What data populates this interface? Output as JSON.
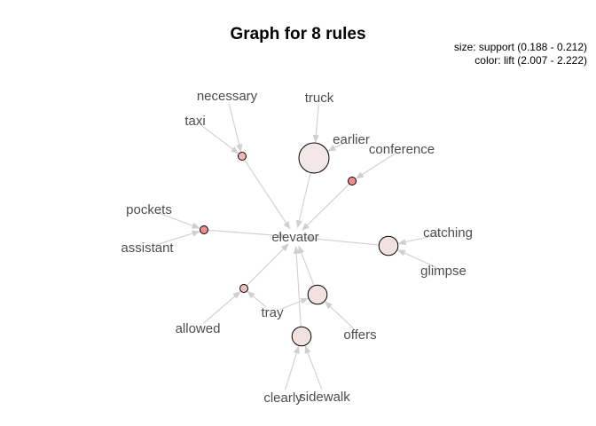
{
  "title": "Graph for 8 rules",
  "legend": {
    "size_text": "size: support (0.188 - 0.212)",
    "color_text": "color: lift (2.007 - 2.222)"
  },
  "colors": {
    "edge": "#cfcfcf",
    "node_stroke": "#000000",
    "label": "#4d4d4d",
    "lift_low": "#f2e6e6",
    "lift_high": "#ef8c8c"
  },
  "items": [
    {
      "id": "elevator",
      "label": "elevator"
    },
    {
      "id": "necessary",
      "label": "necessary"
    },
    {
      "id": "taxi",
      "label": "taxi"
    },
    {
      "id": "truck",
      "label": "truck"
    },
    {
      "id": "earlier",
      "label": "earlier"
    },
    {
      "id": "conference",
      "label": "conference"
    },
    {
      "id": "pockets",
      "label": "pockets"
    },
    {
      "id": "assistant",
      "label": "assistant"
    },
    {
      "id": "catching",
      "label": "catching"
    },
    {
      "id": "glimpse",
      "label": "glimpse"
    },
    {
      "id": "allowed",
      "label": "allowed"
    },
    {
      "id": "tray",
      "label": "tray"
    },
    {
      "id": "offers",
      "label": "offers"
    },
    {
      "id": "clearly",
      "label": "clearly"
    },
    {
      "id": "sidewalk",
      "label": "sidewalk"
    }
  ],
  "rules": [
    {
      "id": "r1",
      "lhs": [
        "necessary",
        "taxi"
      ],
      "rhs": "elevator",
      "support": 0.188,
      "lift": 2.12
    },
    {
      "id": "r2",
      "lhs": [
        "truck",
        "earlier"
      ],
      "rhs": "elevator",
      "support": 0.212,
      "lift": 2.007
    },
    {
      "id": "r3",
      "lhs": [
        "conference"
      ],
      "rhs": "elevator",
      "support": 0.188,
      "lift": 2.222
    },
    {
      "id": "r4",
      "lhs": [
        "pockets",
        "assistant"
      ],
      "rhs": "elevator",
      "support": 0.188,
      "lift": 2.222
    },
    {
      "id": "r5",
      "lhs": [
        "catching",
        "glimpse"
      ],
      "rhs": "elevator",
      "support": 0.2,
      "lift": 2.02
    },
    {
      "id": "r6",
      "lhs": [
        "allowed",
        "tray"
      ],
      "rhs": "elevator",
      "support": 0.188,
      "lift": 2.1
    },
    {
      "id": "r7",
      "lhs": [
        "tray",
        "offers"
      ],
      "rhs": "elevator",
      "support": 0.2,
      "lift": 2.02
    },
    {
      "id": "r8",
      "lhs": [
        "clearly",
        "sidewalk"
      ],
      "rhs": "elevator",
      "support": 0.2,
      "lift": 2.02
    }
  ]
}
